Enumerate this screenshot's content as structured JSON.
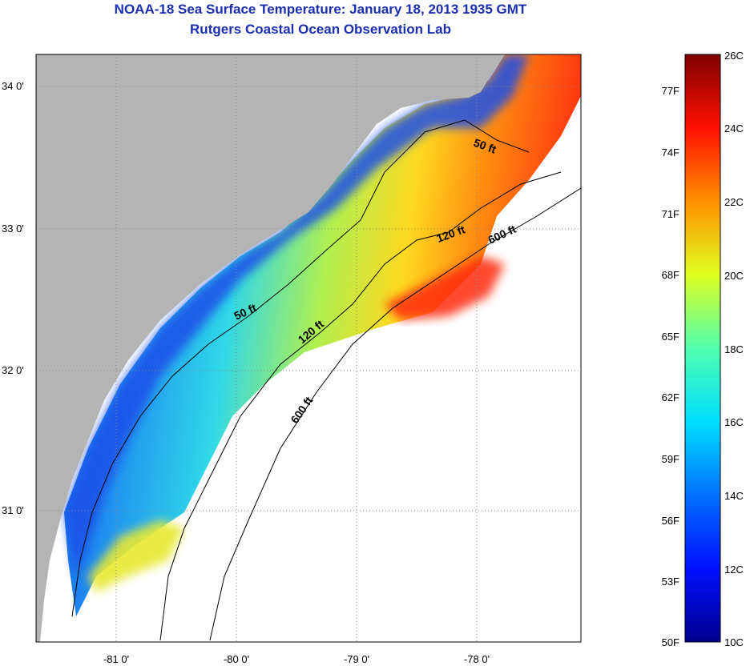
{
  "title": "NOAA-18 Sea Surface Temperature:  January 18, 2013 1935 GMT",
  "subtitle": "Rutgers Coastal Ocean Observation Lab",
  "latitude_labels": [
    "34 0'",
    "33 0'",
    "32 0'",
    "31 0'"
  ],
  "longitude_labels": [
    "-81 0'",
    "-80 0'",
    "-79 0'",
    "-78 0'"
  ],
  "contour_labels": {
    "c50_north": "50 ft",
    "c50_south": "50 ft",
    "c120_north": "120 ft",
    "c120_south": "120 ft",
    "c600_north": "600 ft",
    "c600_south": "600 ft"
  },
  "colorbar": {
    "fahrenheit": [
      "77F",
      "74F",
      "71F",
      "68F",
      "65F",
      "62F",
      "59F",
      "56F",
      "53F",
      "50F"
    ],
    "celsius": [
      "26C",
      "24C",
      "22C",
      "20C",
      "18C",
      "16C",
      "14C",
      "12C",
      "10C"
    ]
  },
  "colors": {
    "title": "#1c2fb0",
    "land": "#b4b4b4",
    "no_data": "#ffffff"
  }
}
